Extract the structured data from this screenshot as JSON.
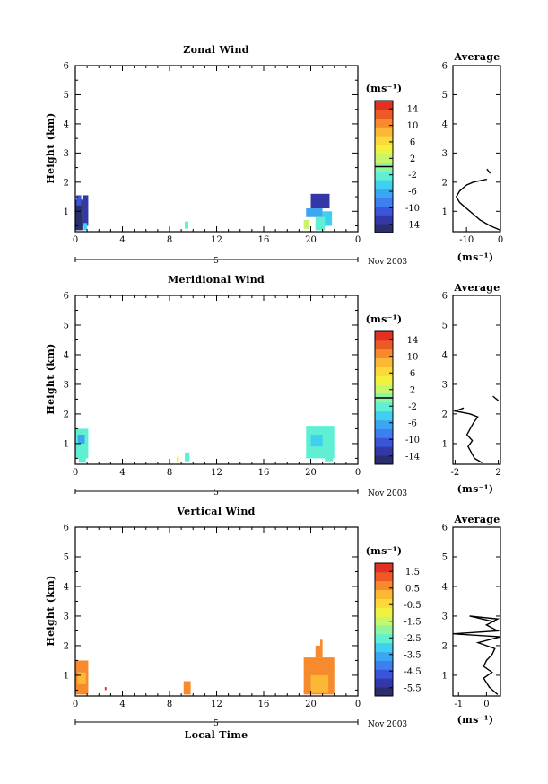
{
  "chart_data": [
    {
      "type": "heatmap",
      "title": "Zonal Wind",
      "ylabel": "Height (km)",
      "xlabel": "",
      "xlim": [
        0,
        24
      ],
      "ylim": [
        0.3,
        6
      ],
      "x_ticks": [
        "0",
        "4",
        "8",
        "12",
        "16",
        "20",
        "0"
      ],
      "y_ticks": [
        "1",
        "2",
        "3",
        "4",
        "5",
        "6"
      ],
      "date_axis": {
        "day_label": "5",
        "month_label": "Nov 2003"
      },
      "colorbar": {
        "unit": "(ms⁻¹)",
        "ticks": [
          "14",
          "10",
          "6",
          "2",
          "-2",
          "-6",
          "-10",
          "-14"
        ],
        "min": -16,
        "max": 16,
        "zero_line": 0
      },
      "cells": [
        {
          "x0": 0.0,
          "x1": 0.6,
          "y0": 0.35,
          "y1": 1.4,
          "value": -14
        },
        {
          "x0": 0.6,
          "x1": 1.1,
          "y0": 0.5,
          "y1": 1.55,
          "value": -12
        },
        {
          "x0": 0.1,
          "x1": 0.5,
          "y0": 1.2,
          "y1": 1.55,
          "value": -10
        },
        {
          "x0": 0.7,
          "x1": 1.0,
          "y0": 0.35,
          "y1": 0.6,
          "value": -4
        },
        {
          "x0": 9.3,
          "x1": 9.6,
          "y0": 0.4,
          "y1": 0.65,
          "value": -3
        },
        {
          "x0": 19.6,
          "x1": 21.0,
          "y0": 0.8,
          "y1": 1.1,
          "value": -6
        },
        {
          "x0": 20.0,
          "x1": 21.6,
          "y0": 1.1,
          "y1": 1.6,
          "value": -12
        },
        {
          "x0": 21.0,
          "x1": 21.8,
          "y0": 0.5,
          "y1": 1.0,
          "value": -4
        },
        {
          "x0": 20.4,
          "x1": 21.2,
          "y0": 0.35,
          "y1": 0.8,
          "value": -3
        },
        {
          "x0": 19.4,
          "x1": 19.9,
          "y0": 0.4,
          "y1": 0.7,
          "value": 2
        }
      ],
      "profile": {
        "title": "Average",
        "xlabel": "(ms⁻¹)",
        "x_ticks": [
          "-10",
          "0"
        ],
        "xlim": [
          -14,
          0
        ],
        "height": [
          0.35,
          0.5,
          0.7,
          0.9,
          1.1,
          1.3,
          1.5,
          1.7,
          1.9,
          2.0,
          2.1
        ],
        "value": [
          0,
          -3,
          -6,
          -8,
          -10,
          -12,
          -13,
          -12,
          -10,
          -8,
          -4
        ],
        "upper": {
          "height": [
            2.3,
            2.45
          ],
          "value": [
            -3,
            -4
          ]
        }
      }
    },
    {
      "type": "heatmap",
      "title": "Meridional Wind",
      "ylabel": "Height (km)",
      "xlabel": "",
      "xlim": [
        0,
        24
      ],
      "ylim": [
        0.3,
        6
      ],
      "x_ticks": [
        "0",
        "4",
        "8",
        "12",
        "16",
        "20",
        "0"
      ],
      "y_ticks": [
        "1",
        "2",
        "3",
        "4",
        "5",
        "6"
      ],
      "date_axis": {
        "day_label": "5",
        "month_label": "Nov 2003"
      },
      "colorbar": {
        "unit": "(ms⁻¹)",
        "ticks": [
          "14",
          "10",
          "6",
          "2",
          "-2",
          "-6",
          "-10",
          "-14"
        ],
        "min": -16,
        "max": 16,
        "zero_line": 0
      },
      "cells": [
        {
          "x0": 0.0,
          "x1": 1.1,
          "y0": 0.5,
          "y1": 1.5,
          "value": -3
        },
        {
          "x0": 0.2,
          "x1": 0.8,
          "y0": 1.0,
          "y1": 1.3,
          "value": -6
        },
        {
          "x0": 0.3,
          "x1": 0.9,
          "y0": 0.35,
          "y1": 0.55,
          "value": -2
        },
        {
          "x0": 8.6,
          "x1": 8.8,
          "y0": 0.4,
          "y1": 0.55,
          "value": 5
        },
        {
          "x0": 9.3,
          "x1": 9.7,
          "y0": 0.4,
          "y1": 0.7,
          "value": -3
        },
        {
          "x0": 19.6,
          "x1": 22.0,
          "y0": 0.5,
          "y1": 1.6,
          "value": -3
        },
        {
          "x0": 20.0,
          "x1": 21.0,
          "y0": 0.9,
          "y1": 1.3,
          "value": -5
        },
        {
          "x0": 21.2,
          "x1": 21.9,
          "y0": 0.4,
          "y1": 0.9,
          "value": -2
        }
      ],
      "profile": {
        "title": "Average",
        "xlabel": "(ms⁻¹)",
        "x_ticks": [
          "-2",
          "2"
        ],
        "xlim": [
          -2.2,
          2.2
        ],
        "height": [
          0.35,
          0.5,
          0.7,
          0.9,
          1.1,
          1.3,
          1.5,
          1.7,
          1.9,
          2.0,
          2.1,
          2.2
        ],
        "value": [
          0.5,
          -0.2,
          -0.5,
          -0.8,
          -0.4,
          -0.9,
          -0.6,
          -0.3,
          0.1,
          -0.6,
          -2.0,
          -1.2
        ],
        "upper": {
          "height": [
            2.45,
            2.6
          ],
          "value": [
            2.0,
            1.5
          ]
        }
      }
    },
    {
      "type": "heatmap",
      "title": "Vertical Wind",
      "ylabel": "Height (km)",
      "xlabel": "Local Time",
      "xlim": [
        0,
        24
      ],
      "ylim": [
        0.3,
        6
      ],
      "x_ticks": [
        "0",
        "4",
        "8",
        "12",
        "16",
        "20",
        "0"
      ],
      "y_ticks": [
        "1",
        "2",
        "3",
        "4",
        "5",
        "6"
      ],
      "date_axis": {
        "day_label": "5",
        "month_label": "Nov 2003"
      },
      "colorbar": {
        "unit": "(ms⁻¹)",
        "ticks": [
          "1.5",
          "0.5",
          "-0.5",
          "-1.5",
          "-2.5",
          "-3.5",
          "-4.5",
          "-5.5"
        ],
        "min": -6,
        "max": 2
      },
      "cells": [
        {
          "x0": 0.0,
          "x1": 1.1,
          "y0": 0.35,
          "y1": 1.5,
          "value": 0.4
        },
        {
          "x0": 0.2,
          "x1": 0.9,
          "y0": 0.7,
          "y1": 1.1,
          "value": 0.1
        },
        {
          "x0": 2.5,
          "x1": 2.65,
          "y0": 0.5,
          "y1": 0.6,
          "value": 1.8
        },
        {
          "x0": 9.2,
          "x1": 9.8,
          "y0": 0.35,
          "y1": 0.8,
          "value": 0.4
        },
        {
          "x0": 19.4,
          "x1": 22.0,
          "y0": 0.35,
          "y1": 1.6,
          "value": 0.5
        },
        {
          "x0": 20.0,
          "x1": 21.5,
          "y0": 0.4,
          "y1": 1.0,
          "value": 0.1
        },
        {
          "x0": 20.4,
          "x1": 21.0,
          "y0": 1.6,
          "y1": 2.0,
          "value": 0.5
        },
        {
          "x0": 20.8,
          "x1": 21.0,
          "y0": 2.0,
          "y1": 2.2,
          "value": 0.6
        }
      ],
      "profile": {
        "title": "Average",
        "xlabel": "(ms⁻¹)",
        "x_ticks": [
          "-1",
          "0"
        ],
        "xlim": [
          -1.2,
          0.5
        ],
        "height": [
          0.35,
          0.6,
          0.9,
          1.1,
          1.3,
          1.5,
          1.7,
          1.9,
          2.1,
          2.3,
          2.4,
          2.5,
          2.7,
          2.9,
          3.0
        ],
        "value": [
          0.4,
          0.1,
          -0.1,
          0.2,
          -0.1,
          0.0,
          0.2,
          0.3,
          -0.3,
          0.5,
          -1.2,
          0.4,
          0.0,
          0.4,
          -0.6
        ],
        "upper": {
          "height": [
            3.0,
            2.8
          ],
          "value": [
            -0.6,
            0.3
          ]
        }
      }
    }
  ]
}
